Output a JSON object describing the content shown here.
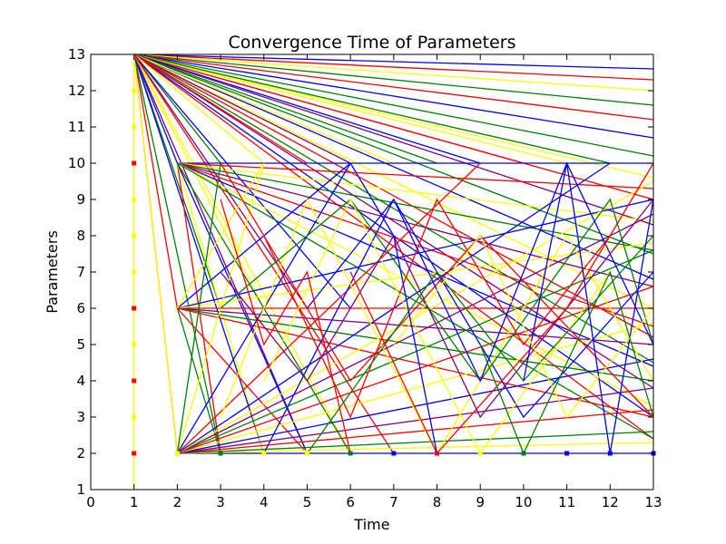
{
  "chart_data": {
    "type": "line",
    "title": "Convergence Time of Parameters",
    "xlabel": "Time",
    "ylabel": "Parameters",
    "xlim": [
      0,
      13
    ],
    "ylim": [
      1,
      13
    ],
    "xticks": [
      0,
      1,
      2,
      3,
      4,
      5,
      6,
      7,
      8,
      9,
      10,
      11,
      12,
      13
    ],
    "yticks": [
      1,
      2,
      3,
      4,
      5,
      6,
      7,
      8,
      9,
      10,
      11,
      12,
      13
    ],
    "grid": false,
    "series_colors": [
      "#0000ff",
      "#008000",
      "#ff0000",
      "#ffff00",
      "#800080"
    ],
    "series": [
      {
        "color": "#0000ff",
        "x": [
          1,
          13
        ],
        "y": [
          13,
          12.6
        ]
      },
      {
        "color": "#ff0000",
        "x": [
          1,
          13
        ],
        "y": [
          13,
          12.3
        ]
      },
      {
        "color": "#ffff00",
        "x": [
          1,
          13
        ],
        "y": [
          13,
          12.0
        ]
      },
      {
        "color": "#008000",
        "x": [
          1,
          13
        ],
        "y": [
          13,
          11.6
        ]
      },
      {
        "color": "#ff0000",
        "x": [
          1,
          13
        ],
        "y": [
          13,
          11.2
        ]
      },
      {
        "color": "#0000ff",
        "x": [
          1,
          13
        ],
        "y": [
          13,
          10.7
        ]
      },
      {
        "color": "#008000",
        "x": [
          1,
          13
        ],
        "y": [
          13,
          10.2
        ]
      },
      {
        "color": "#ffff00",
        "x": [
          1,
          13
        ],
        "y": [
          13,
          9.6
        ]
      },
      {
        "color": "#ff0000",
        "x": [
          1,
          13
        ],
        "y": [
          13,
          9.0
        ]
      },
      {
        "color": "#800080",
        "x": [
          1,
          13
        ],
        "y": [
          13,
          8.3
        ]
      },
      {
        "color": "#008000",
        "x": [
          1,
          13
        ],
        "y": [
          13,
          7.5
        ]
      },
      {
        "color": "#0000ff",
        "x": [
          1,
          13
        ],
        "y": [
          13,
          6.8
        ]
      },
      {
        "color": "#ffff00",
        "x": [
          1,
          13
        ],
        "y": [
          13,
          6.0
        ]
      },
      {
        "color": "#ff0000",
        "x": [
          1,
          13
        ],
        "y": [
          13,
          5.2
        ]
      },
      {
        "color": "#008000",
        "x": [
          1,
          13
        ],
        "y": [
          13,
          4.5
        ]
      },
      {
        "color": "#800080",
        "x": [
          1,
          13
        ],
        "y": [
          13,
          3.8
        ]
      },
      {
        "color": "#0000ff",
        "x": [
          1,
          13
        ],
        "y": [
          13,
          3.0
        ]
      },
      {
        "color": "#ff0000",
        "x": [
          1,
          13
        ],
        "y": [
          13,
          2.4
        ]
      },
      {
        "color": "#008000",
        "x": [
          1,
          12
        ],
        "y": [
          13,
          10
        ]
      },
      {
        "color": "#ffff00",
        "x": [
          1,
          11
        ],
        "y": [
          13,
          10
        ]
      },
      {
        "color": "#ff0000",
        "x": [
          1,
          10
        ],
        "y": [
          13,
          10
        ]
      },
      {
        "color": "#0000ff",
        "x": [
          1,
          9
        ],
        "y": [
          13,
          10
        ]
      },
      {
        "color": "#008000",
        "x": [
          1,
          8
        ],
        "y": [
          13,
          10
        ]
      },
      {
        "color": "#ffff00",
        "x": [
          1,
          7
        ],
        "y": [
          13,
          10
        ]
      },
      {
        "color": "#800080",
        "x": [
          1,
          6
        ],
        "y": [
          13,
          10
        ]
      },
      {
        "color": "#ff0000",
        "x": [
          1,
          5
        ],
        "y": [
          13,
          10
        ]
      },
      {
        "color": "#ffff00",
        "x": [
          1,
          4
        ],
        "y": [
          13,
          10
        ]
      },
      {
        "color": "#008000",
        "x": [
          1,
          3
        ],
        "y": [
          13,
          10
        ]
      },
      {
        "color": "#0000ff",
        "x": [
          1,
          2
        ],
        "y": [
          13,
          10
        ]
      },
      {
        "color": "#ff0000",
        "x": [
          1,
          2
        ],
        "y": [
          13,
          6
        ]
      },
      {
        "color": "#008000",
        "x": [
          1,
          3
        ],
        "y": [
          13,
          6
        ]
      },
      {
        "color": "#ffff00",
        "x": [
          1,
          4
        ],
        "y": [
          13,
          6
        ]
      },
      {
        "color": "#800080",
        "x": [
          1,
          5
        ],
        "y": [
          13,
          6
        ]
      },
      {
        "color": "#0000ff",
        "x": [
          1,
          6
        ],
        "y": [
          13,
          6
        ]
      },
      {
        "color": "#ff0000",
        "x": [
          1,
          2
        ],
        "y": [
          13,
          2
        ]
      },
      {
        "color": "#ffff00",
        "x": [
          1,
          2
        ],
        "y": [
          13,
          2
        ]
      },
      {
        "color": "#008000",
        "x": [
          1,
          3
        ],
        "y": [
          13,
          2
        ]
      },
      {
        "color": "#0000ff",
        "x": [
          1,
          4
        ],
        "y": [
          13,
          2
        ]
      },
      {
        "color": "#800080",
        "x": [
          1,
          5
        ],
        "y": [
          13,
          2
        ]
      },
      {
        "color": "#ffff00",
        "x": [
          1,
          6
        ],
        "y": [
          13,
          2
        ]
      },
      {
        "color": "#ff0000",
        "x": [
          1,
          7
        ],
        "y": [
          13,
          2
        ]
      },
      {
        "color": "#ffff00",
        "x": [
          1,
          1
        ],
        "y": [
          13,
          1
        ]
      },
      {
        "color": "#0000ff",
        "x": [
          2,
          13
        ],
        "y": [
          10,
          10
        ]
      },
      {
        "color": "#ff0000",
        "x": [
          2,
          13
        ],
        "y": [
          10,
          9.3
        ]
      },
      {
        "color": "#ffff00",
        "x": [
          2,
          13
        ],
        "y": [
          10,
          8.4
        ]
      },
      {
        "color": "#008000",
        "x": [
          2,
          13
        ],
        "y": [
          10,
          7.6
        ]
      },
      {
        "color": "#800080",
        "x": [
          2,
          13
        ],
        "y": [
          10,
          6.6
        ]
      },
      {
        "color": "#ff0000",
        "x": [
          2,
          13
        ],
        "y": [
          10,
          5.5
        ]
      },
      {
        "color": "#0000ff",
        "x": [
          2,
          13
        ],
        "y": [
          10,
          4.4
        ]
      },
      {
        "color": "#ffff00",
        "x": [
          2,
          13
        ],
        "y": [
          10,
          3.3
        ]
      },
      {
        "color": "#008000",
        "x": [
          2,
          13
        ],
        "y": [
          10,
          2.4
        ]
      },
      {
        "color": "#ff0000",
        "x": [
          2,
          3
        ],
        "y": [
          10,
          2
        ]
      },
      {
        "color": "#ffff00",
        "x": [
          2,
          4
        ],
        "y": [
          10,
          2
        ]
      },
      {
        "color": "#0000ff",
        "x": [
          2,
          5
        ],
        "y": [
          10,
          2
        ]
      },
      {
        "color": "#008000",
        "x": [
          2,
          6
        ],
        "y": [
          10,
          2
        ]
      },
      {
        "color": "#ff0000",
        "x": [
          2,
          13
        ],
        "y": [
          6,
          6
        ]
      },
      {
        "color": "#0000ff",
        "x": [
          2,
          13
        ],
        "y": [
          6,
          9.0
        ]
      },
      {
        "color": "#ffff00",
        "x": [
          2,
          13
        ],
        "y": [
          6,
          7.8
        ]
      },
      {
        "color": "#800080",
        "x": [
          2,
          13
        ],
        "y": [
          6,
          5.0
        ]
      },
      {
        "color": "#008000",
        "x": [
          2,
          13
        ],
        "y": [
          6,
          4.0
        ]
      },
      {
        "color": "#ff0000",
        "x": [
          2,
          13
        ],
        "y": [
          6,
          3.0
        ]
      },
      {
        "color": "#0000ff",
        "x": [
          2,
          6
        ],
        "y": [
          6,
          10
        ]
      },
      {
        "color": "#ffff00",
        "x": [
          2,
          4
        ],
        "y": [
          6,
          10
        ]
      },
      {
        "color": "#008000",
        "x": [
          2,
          3
        ],
        "y": [
          6,
          2
        ]
      },
      {
        "color": "#ff0000",
        "x": [
          2,
          5
        ],
        "y": [
          6,
          2
        ]
      },
      {
        "color": "#0000ff",
        "x": [
          2,
          13
        ],
        "y": [
          2,
          2
        ]
      },
      {
        "color": "#ffff00",
        "x": [
          2,
          13
        ],
        "y": [
          2,
          2.3
        ]
      },
      {
        "color": "#008000",
        "x": [
          2,
          13
        ],
        "y": [
          2,
          2.6
        ]
      },
      {
        "color": "#ff0000",
        "x": [
          2,
          13
        ],
        "y": [
          2,
          3.2
        ]
      },
      {
        "color": "#800080",
        "x": [
          2,
          13
        ],
        "y": [
          2,
          3.8
        ]
      },
      {
        "color": "#0000ff",
        "x": [
          2,
          13
        ],
        "y": [
          2,
          4.6
        ]
      },
      {
        "color": "#ffff00",
        "x": [
          2,
          13
        ],
        "y": [
          2,
          5.6
        ]
      },
      {
        "color": "#ff0000",
        "x": [
          2,
          13
        ],
        "y": [
          2,
          6.6
        ]
      },
      {
        "color": "#008000",
        "x": [
          2,
          13
        ],
        "y": [
          2,
          7.6
        ]
      },
      {
        "color": "#800080",
        "x": [
          2,
          13
        ],
        "y": [
          2,
          8.6
        ]
      },
      {
        "color": "#ffff00",
        "x": [
          2,
          13
        ],
        "y": [
          2,
          9.5
        ]
      },
      {
        "color": "#0000ff",
        "x": [
          2,
          12
        ],
        "y": [
          2,
          10
        ]
      },
      {
        "color": "#ff0000",
        "x": [
          2,
          9
        ],
        "y": [
          2,
          10
        ]
      },
      {
        "color": "#ffff00",
        "x": [
          2,
          4
        ],
        "y": [
          2,
          10
        ]
      },
      {
        "color": "#008000",
        "x": [
          2,
          3
        ],
        "y": [
          2,
          10
        ]
      },
      {
        "color": "#0000ff",
        "x": [
          2,
          6
        ],
        "y": [
          2,
          10
        ]
      },
      {
        "color": "#ff0000",
        "x": [
          3,
          6,
          9,
          13
        ],
        "y": [
          10,
          4,
          8,
          3
        ]
      },
      {
        "color": "#0000ff",
        "x": [
          4,
          7,
          10,
          13
        ],
        "y": [
          2,
          9,
          3,
          7
        ]
      },
      {
        "color": "#ffff00",
        "x": [
          3,
          5,
          8,
          11,
          13
        ],
        "y": [
          3,
          9,
          2,
          8,
          4
        ]
      },
      {
        "color": "#008000",
        "x": [
          3,
          6,
          9,
          12,
          13
        ],
        "y": [
          6,
          9,
          4,
          9,
          5
        ]
      },
      {
        "color": "#ff0000",
        "x": [
          4,
          6,
          8,
          10,
          12
        ],
        "y": [
          8,
          3,
          9,
          5,
          8
        ]
      },
      {
        "color": "#0000ff",
        "x": [
          5,
          7,
          9,
          11,
          13
        ],
        "y": [
          6,
          9,
          4,
          10,
          5
        ]
      },
      {
        "color": "#ffff00",
        "x": [
          4,
          6,
          9,
          12
        ],
        "y": [
          4,
          9,
          2,
          7
        ]
      },
      {
        "color": "#800080",
        "x": [
          3,
          5,
          7,
          9,
          11,
          13
        ],
        "y": [
          7,
          4,
          8,
          3,
          6,
          9
        ]
      },
      {
        "color": "#008000",
        "x": [
          5,
          8,
          10,
          13
        ],
        "y": [
          2,
          7,
          4,
          8
        ]
      },
      {
        "color": "#ff0000",
        "x": [
          6,
          8,
          11,
          13
        ],
        "y": [
          7,
          2,
          6,
          10
        ]
      },
      {
        "color": "#0000ff",
        "x": [
          10,
          11,
          12,
          13
        ],
        "y": [
          4,
          10,
          2,
          9
        ]
      },
      {
        "color": "#ffff00",
        "x": [
          7,
          9,
          11,
          13
        ],
        "y": [
          5,
          8,
          3,
          6
        ]
      },
      {
        "color": "#0000ff",
        "x": [
          6,
          7,
          8
        ],
        "y": [
          10,
          8,
          2
        ]
      },
      {
        "color": "#008000",
        "x": [
          9,
          10,
          12,
          13
        ],
        "y": [
          5,
          2,
          7,
          3
        ]
      },
      {
        "color": "#ff0000",
        "x": [
          3,
          4,
          5,
          6
        ],
        "y": [
          9,
          5,
          7,
          2
        ]
      }
    ],
    "markers": [
      {
        "color": "#ffff00",
        "x": 1,
        "y": 12
      },
      {
        "color": "#ffff00",
        "x": 1,
        "y": 11
      },
      {
        "color": "#ff0000",
        "x": 1,
        "y": 10
      },
      {
        "color": "#ffff00",
        "x": 1,
        "y": 9
      },
      {
        "color": "#ffff00",
        "x": 1,
        "y": 8
      },
      {
        "color": "#ffff00",
        "x": 1,
        "y": 7
      },
      {
        "color": "#ff0000",
        "x": 1,
        "y": 6
      },
      {
        "color": "#ffff00",
        "x": 1,
        "y": 5
      },
      {
        "color": "#ff0000",
        "x": 1,
        "y": 4
      },
      {
        "color": "#ffff00",
        "x": 1,
        "y": 3
      },
      {
        "color": "#ff0000",
        "x": 1,
        "y": 2
      },
      {
        "color": "#ffff00",
        "x": 2,
        "y": 2
      },
      {
        "color": "#008000",
        "x": 3,
        "y": 2
      },
      {
        "color": "#ffff00",
        "x": 4,
        "y": 2
      },
      {
        "color": "#ffff00",
        "x": 5,
        "y": 2
      },
      {
        "color": "#008000",
        "x": 6,
        "y": 2
      },
      {
        "color": "#0000ff",
        "x": 7,
        "y": 2
      },
      {
        "color": "#ff0000",
        "x": 8,
        "y": 2
      },
      {
        "color": "#ffff00",
        "x": 9,
        "y": 2
      },
      {
        "color": "#008000",
        "x": 10,
        "y": 2
      },
      {
        "color": "#0000ff",
        "x": 11,
        "y": 2
      },
      {
        "color": "#0000ff",
        "x": 12,
        "y": 2
      },
      {
        "color": "#0000ff",
        "x": 13,
        "y": 2
      }
    ]
  }
}
